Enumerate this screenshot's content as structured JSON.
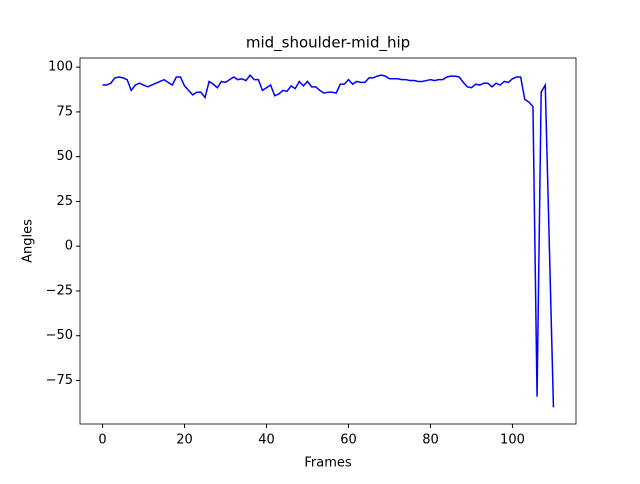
{
  "chart_data": {
    "type": "line",
    "title": "mid_shoulder-mid_hip",
    "x_label": "Frames",
    "y_label": "Angles",
    "x": [
      0,
      1,
      2,
      3,
      4,
      5,
      6,
      7,
      8,
      9,
      10,
      11,
      12,
      13,
      14,
      15,
      16,
      17,
      18,
      19,
      20,
      21,
      22,
      23,
      24,
      25,
      26,
      27,
      28,
      29,
      30,
      31,
      32,
      33,
      34,
      35,
      36,
      37,
      38,
      39,
      40,
      41,
      42,
      43,
      44,
      45,
      46,
      47,
      48,
      49,
      50,
      51,
      52,
      53,
      54,
      55,
      56,
      57,
      58,
      59,
      60,
      61,
      62,
      63,
      64,
      65,
      66,
      67,
      68,
      69,
      70,
      71,
      72,
      73,
      74,
      75,
      76,
      77,
      78,
      79,
      80,
      81,
      82,
      83,
      84,
      85,
      86,
      87,
      88,
      89,
      90,
      91,
      92,
      93,
      94,
      95,
      96,
      97,
      98,
      99,
      100,
      101,
      102,
      103,
      104,
      105,
      106,
      107,
      108,
      109,
      110
    ],
    "series": [
      {
        "color": "#0000ff",
        "values": [
          90,
          90,
          91,
          94,
          94.5,
          94,
          93,
          87,
          90,
          91,
          90,
          89,
          90,
          91,
          92,
          93,
          91.5,
          90,
          94.5,
          94.5,
          89.5,
          87,
          84.5,
          86,
          86,
          83,
          92,
          90.5,
          88.5,
          92,
          91.5,
          93,
          94.5,
          93,
          93.5,
          92.5,
          95.5,
          93,
          93,
          87,
          88.5,
          90,
          84,
          85,
          87,
          86.5,
          89.5,
          88,
          92,
          89.5,
          92,
          89,
          89,
          87,
          85.5,
          86,
          86,
          85.5,
          90.5,
          90.5,
          93,
          90.5,
          92,
          91.5,
          91.5,
          94,
          94,
          95,
          95.5,
          95,
          93.5,
          93.5,
          93.5,
          93,
          93,
          92.5,
          92.5,
          92,
          92,
          92.5,
          93,
          92.5,
          93,
          93,
          94.5,
          95,
          95,
          94.5,
          91.5,
          89,
          88.5,
          90.5,
          90,
          91,
          91,
          89,
          91,
          90,
          92,
          91.5,
          93.5,
          94.5,
          94.5,
          82,
          80.5,
          78,
          -84,
          86,
          90,
          0,
          -90
        ]
      }
    ],
    "xlim": [
      -5.5,
      115.5
    ],
    "ylim": [
      -99.3,
      105.1
    ],
    "xticks": [
      0,
      20,
      40,
      60,
      80,
      100
    ],
    "yticks": [
      {
        "value": -75,
        "label": "−75"
      },
      {
        "value": -50,
        "label": "−50"
      },
      {
        "value": -25,
        "label": "−25"
      },
      0,
      25,
      50,
      75,
      100
    ]
  }
}
